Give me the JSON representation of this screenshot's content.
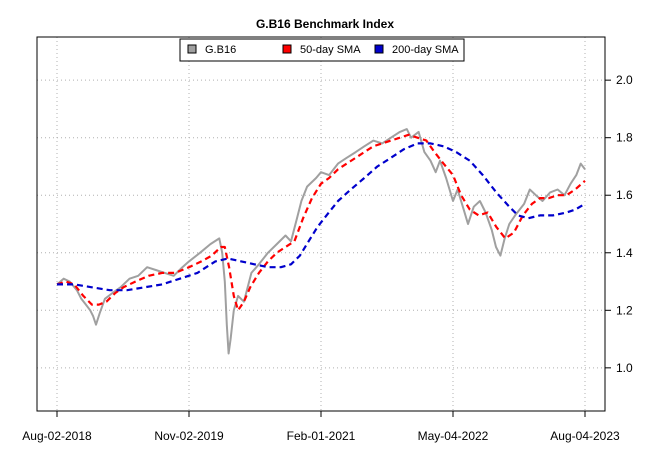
{
  "chart_data": {
    "type": "line",
    "title": "G.B16 Benchmark Index",
    "xlabel": "",
    "ylabel": "",
    "x_axis": {
      "type": "date",
      "range": [
        "2018-08-02",
        "2023-08-04"
      ],
      "ticks": [
        {
          "date": "2018-08-02",
          "label": "Aug-02-2018"
        },
        {
          "date": "2019-11-02",
          "label": "Nov-02-2019"
        },
        {
          "date": "2021-02-01",
          "label": "Feb-01-2021"
        },
        {
          "date": "2022-05-04",
          "label": "May-04-2022"
        },
        {
          "date": "2023-08-04",
          "label": "Aug-04-2023"
        }
      ]
    },
    "y_axis": {
      "position": "right",
      "ylim": [
        0.85,
        2.15
      ],
      "ticks": [
        1.0,
        1.2,
        1.4,
        1.6,
        1.8,
        2.0
      ],
      "tick_labels": [
        "1.0",
        "1.2",
        "1.4",
        "1.6",
        "1.8",
        "2.0"
      ]
    },
    "grid": true,
    "legend": {
      "placement": "top-center",
      "entries": [
        "G.B16",
        "50-day SMA",
        "200-day SMA"
      ]
    },
    "series": [
      {
        "name": "G.B16",
        "color": "#a0a0a0",
        "style": "solid",
        "points": [
          [
            "2018-08-02",
            1.29
          ],
          [
            "2018-08-25",
            1.31
          ],
          [
            "2018-09-15",
            1.3
          ],
          [
            "2018-10-10",
            1.27
          ],
          [
            "2018-10-25",
            1.24
          ],
          [
            "2018-11-10",
            1.22
          ],
          [
            "2018-11-25",
            1.2
          ],
          [
            "2018-12-05",
            1.18
          ],
          [
            "2018-12-15",
            1.15
          ],
          [
            "2018-12-28",
            1.19
          ],
          [
            "2019-01-15",
            1.24
          ],
          [
            "2019-02-10",
            1.26
          ],
          [
            "2019-03-10",
            1.28
          ],
          [
            "2019-04-10",
            1.31
          ],
          [
            "2019-05-10",
            1.32
          ],
          [
            "2019-06-10",
            1.35
          ],
          [
            "2019-07-10",
            1.34
          ],
          [
            "2019-08-10",
            1.33
          ],
          [
            "2019-09-10",
            1.32
          ],
          [
            "2019-10-10",
            1.35
          ],
          [
            "2019-11-02",
            1.37
          ],
          [
            "2019-12-10",
            1.4
          ],
          [
            "2020-01-15",
            1.43
          ],
          [
            "2020-02-15",
            1.45
          ],
          [
            "2020-02-25",
            1.4
          ],
          [
            "2020-03-05",
            1.3
          ],
          [
            "2020-03-12",
            1.15
          ],
          [
            "2020-03-18",
            1.05
          ],
          [
            "2020-03-25",
            1.1
          ],
          [
            "2020-04-05",
            1.2
          ],
          [
            "2020-04-20",
            1.25
          ],
          [
            "2020-05-10",
            1.23
          ],
          [
            "2020-06-05",
            1.33
          ],
          [
            "2020-07-01",
            1.36
          ],
          [
            "2020-08-01",
            1.4
          ],
          [
            "2020-09-01",
            1.43
          ],
          [
            "2020-10-01",
            1.46
          ],
          [
            "2020-10-20",
            1.44
          ],
          [
            "2020-11-10",
            1.52
          ],
          [
            "2020-11-25",
            1.58
          ],
          [
            "2020-12-15",
            1.63
          ],
          [
            "2021-01-15",
            1.66
          ],
          [
            "2021-02-01",
            1.68
          ],
          [
            "2021-03-01",
            1.67
          ],
          [
            "2021-04-01",
            1.71
          ],
          [
            "2021-05-01",
            1.73
          ],
          [
            "2021-06-01",
            1.75
          ],
          [
            "2021-07-01",
            1.77
          ],
          [
            "2021-08-01",
            1.79
          ],
          [
            "2021-09-01",
            1.78
          ],
          [
            "2021-10-01",
            1.8
          ],
          [
            "2021-11-01",
            1.82
          ],
          [
            "2021-11-25",
            1.83
          ],
          [
            "2021-12-10",
            1.8
          ],
          [
            "2022-01-05",
            1.82
          ],
          [
            "2022-01-25",
            1.75
          ],
          [
            "2022-02-15",
            1.72
          ],
          [
            "2022-03-05",
            1.68
          ],
          [
            "2022-03-20",
            1.72
          ],
          [
            "2022-04-10",
            1.66
          ],
          [
            "2022-05-04",
            1.58
          ],
          [
            "2022-05-20",
            1.62
          ],
          [
            "2022-06-10",
            1.55
          ],
          [
            "2022-06-25",
            1.5
          ],
          [
            "2022-07-15",
            1.56
          ],
          [
            "2022-08-05",
            1.58
          ],
          [
            "2022-08-25",
            1.54
          ],
          [
            "2022-09-15",
            1.48
          ],
          [
            "2022-09-30",
            1.42
          ],
          [
            "2022-10-15",
            1.39
          ],
          [
            "2022-10-30",
            1.45
          ],
          [
            "2022-11-15",
            1.5
          ],
          [
            "2022-12-05",
            1.53
          ],
          [
            "2023-01-05",
            1.57
          ],
          [
            "2023-01-25",
            1.62
          ],
          [
            "2023-02-15",
            1.6
          ],
          [
            "2023-03-10",
            1.58
          ],
          [
            "2023-04-05",
            1.61
          ],
          [
            "2023-05-01",
            1.62
          ],
          [
            "2023-05-25",
            1.6
          ],
          [
            "2023-06-15",
            1.64
          ],
          [
            "2023-07-05",
            1.67
          ],
          [
            "2023-07-20",
            1.71
          ],
          [
            "2023-08-04",
            1.69
          ]
        ]
      },
      {
        "name": "50-day SMA",
        "color": "#ff0000",
        "style": "dashed",
        "points": [
          [
            "2018-08-02",
            1.29
          ],
          [
            "2018-09-01",
            1.3
          ],
          [
            "2018-10-01",
            1.29
          ],
          [
            "2018-11-01",
            1.25
          ],
          [
            "2018-12-01",
            1.22
          ],
          [
            "2018-12-25",
            1.22
          ],
          [
            "2019-01-20",
            1.23
          ],
          [
            "2019-02-20",
            1.26
          ],
          [
            "2019-03-20",
            1.28
          ],
          [
            "2019-05-01",
            1.3
          ],
          [
            "2019-06-15",
            1.32
          ],
          [
            "2019-08-01",
            1.33
          ],
          [
            "2019-09-15",
            1.33
          ],
          [
            "2019-11-02",
            1.35
          ],
          [
            "2019-12-15",
            1.37
          ],
          [
            "2020-01-20",
            1.39
          ],
          [
            "2020-02-20",
            1.42
          ],
          [
            "2020-03-05",
            1.42
          ],
          [
            "2020-03-20",
            1.35
          ],
          [
            "2020-04-05",
            1.25
          ],
          [
            "2020-04-20",
            1.2
          ],
          [
            "2020-05-10",
            1.23
          ],
          [
            "2020-06-01",
            1.28
          ],
          [
            "2020-07-01",
            1.33
          ],
          [
            "2020-08-01",
            1.37
          ],
          [
            "2020-09-01",
            1.4
          ],
          [
            "2020-10-01",
            1.42
          ],
          [
            "2020-11-01",
            1.44
          ],
          [
            "2020-12-01",
            1.52
          ],
          [
            "2021-01-01",
            1.59
          ],
          [
            "2021-02-01",
            1.64
          ],
          [
            "2021-03-01",
            1.66
          ],
          [
            "2021-04-01",
            1.69
          ],
          [
            "2021-05-01",
            1.71
          ],
          [
            "2021-06-01",
            1.73
          ],
          [
            "2021-07-01",
            1.75
          ],
          [
            "2021-08-01",
            1.77
          ],
          [
            "2021-09-01",
            1.78
          ],
          [
            "2021-10-01",
            1.79
          ],
          [
            "2021-11-01",
            1.8
          ],
          [
            "2021-12-01",
            1.81
          ],
          [
            "2022-01-01",
            1.8
          ],
          [
            "2022-02-01",
            1.79
          ],
          [
            "2022-03-01",
            1.75
          ],
          [
            "2022-04-01",
            1.71
          ],
          [
            "2022-05-04",
            1.67
          ],
          [
            "2022-06-01",
            1.6
          ],
          [
            "2022-07-01",
            1.55
          ],
          [
            "2022-08-01",
            1.53
          ],
          [
            "2022-09-01",
            1.54
          ],
          [
            "2022-10-01",
            1.49
          ],
          [
            "2022-11-01",
            1.45
          ],
          [
            "2022-12-01",
            1.47
          ],
          [
            "2023-01-01",
            1.53
          ],
          [
            "2023-02-01",
            1.57
          ],
          [
            "2023-03-01",
            1.59
          ],
          [
            "2023-04-01",
            1.59
          ],
          [
            "2023-05-01",
            1.6
          ],
          [
            "2023-06-01",
            1.6
          ],
          [
            "2023-07-01",
            1.62
          ],
          [
            "2023-08-04",
            1.65
          ]
        ]
      },
      {
        "name": "200-day SMA",
        "color": "#0000cc",
        "style": "dashed",
        "points": [
          [
            "2018-08-02",
            1.29
          ],
          [
            "2018-10-01",
            1.29
          ],
          [
            "2018-12-01",
            1.28
          ],
          [
            "2019-02-01",
            1.27
          ],
          [
            "2019-04-01",
            1.27
          ],
          [
            "2019-06-01",
            1.28
          ],
          [
            "2019-08-01",
            1.29
          ],
          [
            "2019-10-01",
            1.31
          ],
          [
            "2019-12-01",
            1.33
          ],
          [
            "2020-02-01",
            1.37
          ],
          [
            "2020-03-15",
            1.38
          ],
          [
            "2020-05-01",
            1.37
          ],
          [
            "2020-06-15",
            1.36
          ],
          [
            "2020-08-01",
            1.35
          ],
          [
            "2020-09-15",
            1.35
          ],
          [
            "2020-10-20",
            1.36
          ],
          [
            "2020-11-20",
            1.39
          ],
          [
            "2020-12-20",
            1.44
          ],
          [
            "2021-01-20",
            1.49
          ],
          [
            "2021-02-20",
            1.53
          ],
          [
            "2021-04-01",
            1.58
          ],
          [
            "2021-05-15",
            1.62
          ],
          [
            "2021-07-01",
            1.66
          ],
          [
            "2021-08-15",
            1.7
          ],
          [
            "2021-10-01",
            1.73
          ],
          [
            "2021-11-15",
            1.76
          ],
          [
            "2022-01-01",
            1.78
          ],
          [
            "2022-02-15",
            1.78
          ],
          [
            "2022-04-01",
            1.77
          ],
          [
            "2022-05-15",
            1.75
          ],
          [
            "2022-07-01",
            1.72
          ],
          [
            "2022-08-15",
            1.67
          ],
          [
            "2022-10-01",
            1.61
          ],
          [
            "2022-11-15",
            1.56
          ],
          [
            "2022-12-15",
            1.53
          ],
          [
            "2023-01-20",
            1.52
          ],
          [
            "2023-03-01",
            1.53
          ],
          [
            "2023-04-15",
            1.53
          ],
          [
            "2023-06-01",
            1.54
          ],
          [
            "2023-07-01",
            1.55
          ],
          [
            "2023-08-04",
            1.57
          ]
        ]
      }
    ]
  }
}
